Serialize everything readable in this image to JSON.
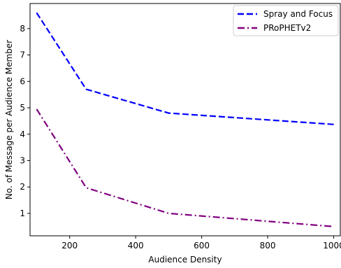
{
  "chart_data": {
    "type": "line",
    "title": "",
    "xlabel": "Audience Density",
    "ylabel": "No. of Message per Audience Member",
    "xlim": [
      80,
      1020
    ],
    "ylim": [
      0.15,
      8.95
    ],
    "xticks": [
      200,
      400,
      600,
      800,
      1000
    ],
    "yticks": [
      1,
      2,
      3,
      4,
      5,
      6,
      7,
      8
    ],
    "grid": false,
    "legend_position": "top-right",
    "series": [
      {
        "name": "Spray and Focus",
        "color": "#0000ff",
        "linestyle": "dashed",
        "x": [
          100,
          250,
          500,
          1000
        ],
        "y": [
          8.6,
          5.7,
          4.8,
          4.37
        ]
      },
      {
        "name": "PRoPHETv2",
        "color": "#800080",
        "linestyle": "dashdot",
        "x": [
          100,
          250,
          500,
          1000
        ],
        "y": [
          4.95,
          1.97,
          1.0,
          0.5
        ]
      }
    ]
  }
}
